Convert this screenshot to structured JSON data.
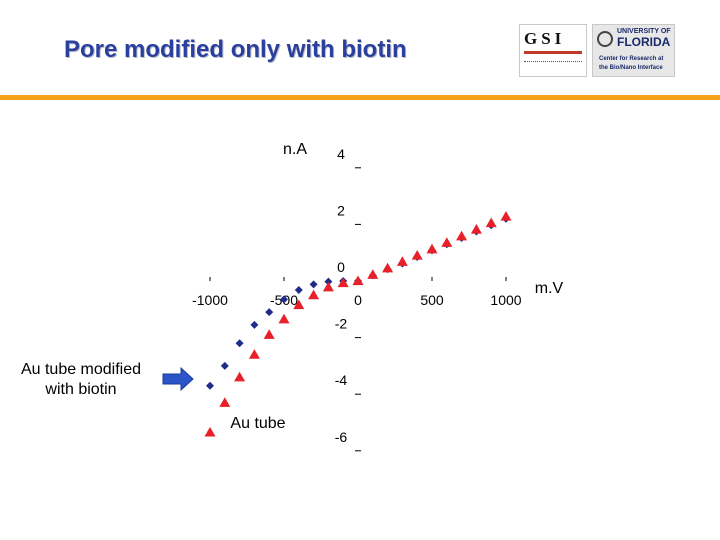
{
  "slide": {
    "title": "Pore modified only with biotin"
  },
  "logos": {
    "left": {
      "name": "gsi-logo",
      "text": "GSI"
    },
    "right": {
      "name": "university-of-florida-logo",
      "small": "UNIVERSITY OF",
      "big": "FLORIDA",
      "lines": [
        "Center for Research at",
        "the Bio/Nano Interface"
      ]
    }
  },
  "colors": {
    "accent_rule": "#f4a21c",
    "title": "#2b3f9e",
    "au_tube": "#e8202a",
    "au_tube_biotin": "#1f2d8a",
    "arrow": "#2a55c8"
  },
  "annotations": {
    "au_tube_biotin": [
      "Au tube modified",
      "with biotin"
    ],
    "au_tube": "Au tube"
  },
  "chart_data": {
    "type": "scatter",
    "xlabel": "m.V",
    "ylabel": "n.A",
    "xlim": [
      -1000,
      1000
    ],
    "ylim": [
      -6,
      4
    ],
    "x_ticks": [
      -1000,
      -500,
      0,
      500,
      1000
    ],
    "y_ticks": [
      4,
      2,
      0,
      -2,
      -4,
      -6
    ],
    "grid": false,
    "series": [
      {
        "marker": "triangle",
        "color": "#e8202a",
        "x": [
          -1000,
          -900,
          -800,
          -700,
          -600,
          -500,
          -400,
          -300,
          -200,
          -100,
          0,
          100,
          200,
          300,
          400,
          500,
          600,
          700,
          800,
          900,
          1000
        ],
        "y": [
          -5.35,
          -4.3,
          -3.4,
          -2.6,
          -1.9,
          -1.35,
          -0.85,
          -0.5,
          -0.22,
          -0.07,
          0,
          0.22,
          0.45,
          0.68,
          0.9,
          1.12,
          1.35,
          1.58,
          1.82,
          2.05,
          2.28
        ]
      },
      {
        "marker": "diamond",
        "color": "#1f2d8a",
        "x": [
          -1000,
          -900,
          -800,
          -700,
          -600,
          -500,
          -400,
          -300,
          -200,
          -100,
          0,
          100,
          200,
          300,
          400,
          500,
          600,
          700,
          800,
          900,
          1000
        ],
        "y": [
          -3.7,
          -3.0,
          -2.2,
          -1.55,
          -1.1,
          -0.65,
          -0.32,
          -0.12,
          -0.02,
          0,
          0,
          0.2,
          0.42,
          0.62,
          0.85,
          1.08,
          1.3,
          1.52,
          1.75,
          1.97,
          2.2
        ]
      }
    ]
  }
}
